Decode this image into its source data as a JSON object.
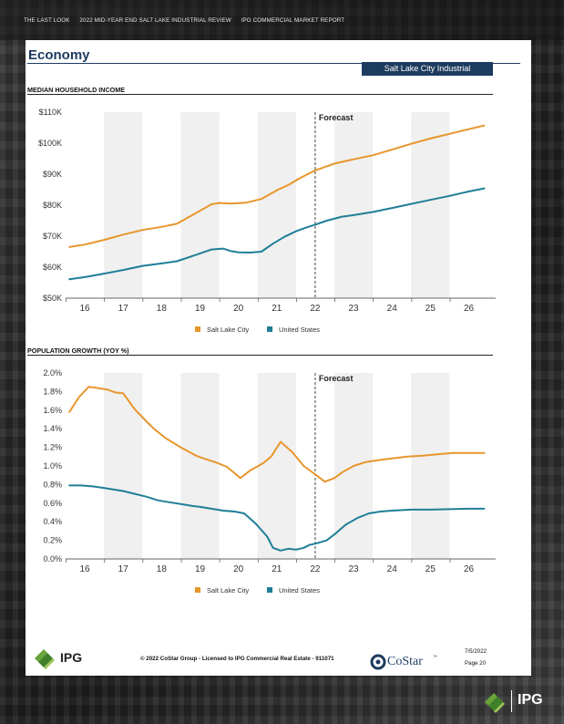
{
  "nav": {
    "items": [
      "THE LAST LOOK",
      "2022 MID-YEAR END SALT LAKE INDUSTRIAL REVIEW",
      "IPG COMMERCIAL MARKET REPORT"
    ]
  },
  "page": {
    "section_title": "Economy",
    "badge": "Salt Lake City Industrial"
  },
  "footer": {
    "brand": "IPG",
    "copyright": "© 2022 CoStar Group - Licensed to IPG Commercial Real Estate - 911071",
    "costar": "CoStar",
    "trademark": "™",
    "date": "7/5/2022",
    "page": "Page 20"
  },
  "corner_brand": "IPG",
  "colors": {
    "slc": "#e8962c",
    "us": "#1f7f96",
    "title": "#1c3b5e"
  },
  "chart_data": [
    {
      "type": "line",
      "title": "MEDIAN HOUSEHOLD INCOME",
      "forecast_label": "Forecast",
      "forecast_x": 22,
      "x_ticks": [
        16,
        17,
        18,
        19,
        20,
        21,
        22,
        23,
        24,
        25,
        26
      ],
      "xlim": [
        15.5,
        26.7
      ],
      "ylim": [
        50000,
        110000
      ],
      "y_ticks": [
        50000,
        60000,
        70000,
        80000,
        90000,
        100000,
        110000
      ],
      "y_tick_labels": [
        "$50K",
        "$60K",
        "$70K",
        "$80K",
        "$90K",
        "$100K",
        "$110K"
      ],
      "legend": [
        "Salt Lake City",
        "United States"
      ],
      "series": [
        {
          "name": "Salt Lake City",
          "x": [
            15.6,
            16,
            16.5,
            17,
            17.5,
            18,
            18.4,
            18.9,
            19.3,
            19.5,
            19.8,
            20.2,
            20.6,
            21,
            21.3,
            21.6,
            22,
            22.5,
            23,
            23.5,
            24,
            24.5,
            25,
            25.5,
            26,
            26.4
          ],
          "values": [
            66500,
            67300,
            68800,
            70500,
            72000,
            73000,
            74000,
            77500,
            80300,
            80700,
            80500,
            80800,
            82000,
            84800,
            86500,
            88700,
            91200,
            93400,
            94800,
            96100,
            97900,
            99800,
            101500,
            103000,
            104500,
            105700
          ]
        },
        {
          "name": "United States",
          "x": [
            15.6,
            16,
            16.5,
            17,
            17.5,
            18,
            18.4,
            18.9,
            19.3,
            19.6,
            19.8,
            20,
            20.3,
            20.6,
            20.9,
            21.2,
            21.5,
            21.8,
            22,
            22.3,
            22.7,
            23,
            23.5,
            24,
            24.5,
            25,
            25.5,
            26,
            26.4
          ],
          "values": [
            56100,
            56800,
            57900,
            59100,
            60400,
            61200,
            61900,
            64000,
            65700,
            66000,
            65200,
            64800,
            64700,
            65000,
            67600,
            69800,
            71600,
            72900,
            73700,
            75000,
            76300,
            76800,
            77800,
            79100,
            80400,
            81700,
            83000,
            84400,
            85400
          ]
        }
      ]
    },
    {
      "type": "line",
      "title": "POPULATION GROWTH (YOY %)",
      "forecast_label": "Forecast",
      "forecast_x": 22,
      "x_ticks": [
        16,
        17,
        18,
        19,
        20,
        21,
        22,
        23,
        24,
        25,
        26
      ],
      "xlim": [
        15.5,
        26.7
      ],
      "ylim": [
        0,
        2.0
      ],
      "y_ticks": [
        0,
        0.2,
        0.4,
        0.6,
        0.8,
        1.0,
        1.2,
        1.4,
        1.6,
        1.8,
        2.0
      ],
      "y_tick_labels": [
        "0.0%",
        "0.2%",
        "0.4%",
        "0.6%",
        "0.8%",
        "1.0%",
        "1.2%",
        "1.4%",
        "1.6%",
        "1.8%",
        "2.0%"
      ],
      "legend": [
        "Salt Lake City",
        "United States"
      ],
      "series": [
        {
          "name": "Salt Lake City",
          "x": [
            15.6,
            15.85,
            16.1,
            16.3,
            16.6,
            16.8,
            17,
            17.3,
            17.6,
            17.8,
            18.1,
            18.5,
            18.9,
            19.1,
            19.4,
            19.7,
            19.85,
            20.05,
            20.3,
            20.65,
            20.85,
            21.1,
            21.4,
            21.7,
            22,
            22.25,
            22.5,
            22.7,
            23,
            23.3,
            23.6,
            24,
            24.4,
            24.8,
            25.3,
            25.6,
            26,
            26.4
          ],
          "values": [
            1.58,
            1.74,
            1.85,
            1.84,
            1.82,
            1.79,
            1.78,
            1.61,
            1.48,
            1.4,
            1.3,
            1.2,
            1.11,
            1.08,
            1.04,
            0.99,
            0.94,
            0.87,
            0.95,
            1.03,
            1.1,
            1.26,
            1.15,
            1.0,
            0.91,
            0.83,
            0.87,
            0.93,
            1.0,
            1.04,
            1.06,
            1.08,
            1.1,
            1.11,
            1.13,
            1.14,
            1.14,
            1.14
          ]
        },
        {
          "name": "United States",
          "x": [
            15.6,
            15.9,
            16.2,
            16.4,
            16.7,
            17,
            17.3,
            17.6,
            17.9,
            18.2,
            18.5,
            18.8,
            19,
            19.3,
            19.6,
            19.9,
            20.15,
            20.45,
            20.75,
            20.9,
            21.1,
            21.3,
            21.5,
            21.7,
            21.85,
            22.05,
            22.3,
            22.55,
            22.8,
            23.1,
            23.4,
            23.7,
            24,
            24.5,
            25,
            25.5,
            26,
            26.4
          ],
          "values": [
            0.79,
            0.79,
            0.78,
            0.77,
            0.75,
            0.73,
            0.7,
            0.67,
            0.63,
            0.61,
            0.59,
            0.57,
            0.56,
            0.54,
            0.52,
            0.51,
            0.49,
            0.38,
            0.24,
            0.12,
            0.09,
            0.11,
            0.1,
            0.12,
            0.15,
            0.17,
            0.2,
            0.28,
            0.37,
            0.44,
            0.49,
            0.51,
            0.52,
            0.53,
            0.53,
            0.535,
            0.54,
            0.54
          ]
        }
      ]
    }
  ]
}
